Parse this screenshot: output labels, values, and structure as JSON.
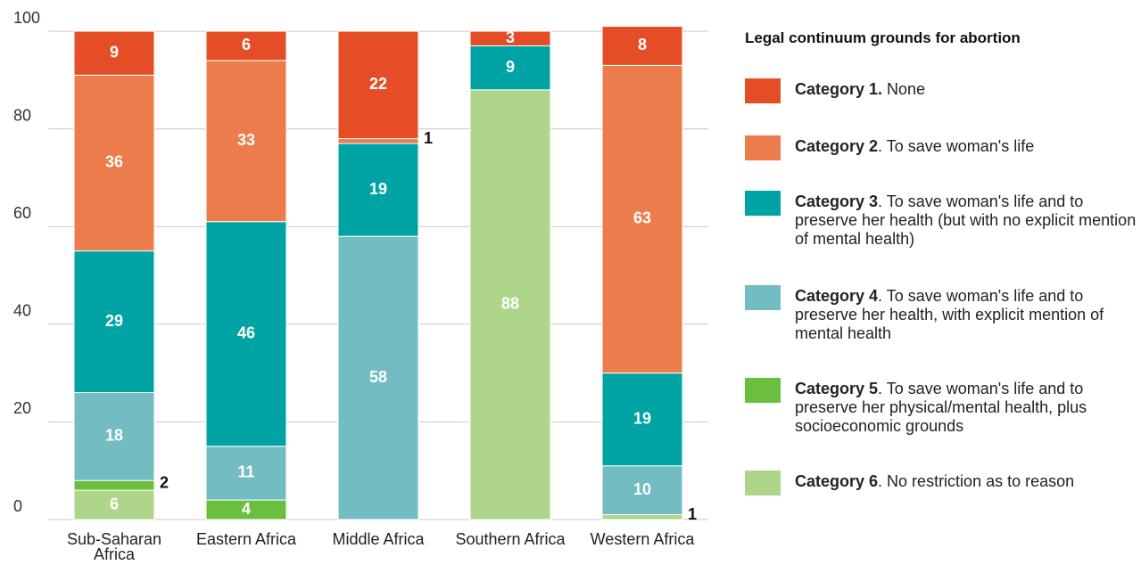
{
  "chart_data": {
    "type": "stacked_bar",
    "legend_title": "Legal continuum grounds for abortion",
    "categories": [
      "Sub-Saharan Africa",
      "Eastern Africa",
      "Middle Africa",
      "Southern Africa",
      "Western Africa"
    ],
    "series": [
      {
        "name": "Category 6",
        "description": ". No restriction as to reason",
        "color": "#aed68a",
        "values": [
          6,
          0,
          0,
          88,
          1
        ]
      },
      {
        "name": "Category 5",
        "description": ". To save woman's life and to preserve her physical/mental health, plus socioeconomic grounds",
        "color": "#6bbf3f",
        "values": [
          2,
          4,
          0,
          0,
          0
        ]
      },
      {
        "name": "Category 4",
        "description": ". To save woman's life and to preserve her health, with explicit mention of mental health",
        "color": "#72bcc2",
        "values": [
          18,
          11,
          58,
          0,
          10
        ]
      },
      {
        "name": "Category 3",
        "description": ". To save woman's life and to preserve her health (but with no explicit mention of mental health)",
        "color": "#00a3a4",
        "values": [
          29,
          46,
          19,
          9,
          19
        ]
      },
      {
        "name": "Category 2",
        "description": ". To save woman's life",
        "color": "#ec7c4b",
        "values": [
          36,
          33,
          1,
          0,
          63
        ]
      },
      {
        "name": "Category 1.",
        "description": " None",
        "color": "#e44d26",
        "values": [
          9,
          6,
          22,
          3,
          8
        ]
      }
    ],
    "ylim": [
      0,
      100
    ],
    "yticks": [
      0,
      20,
      40,
      60,
      80,
      100
    ],
    "grid": true
  }
}
